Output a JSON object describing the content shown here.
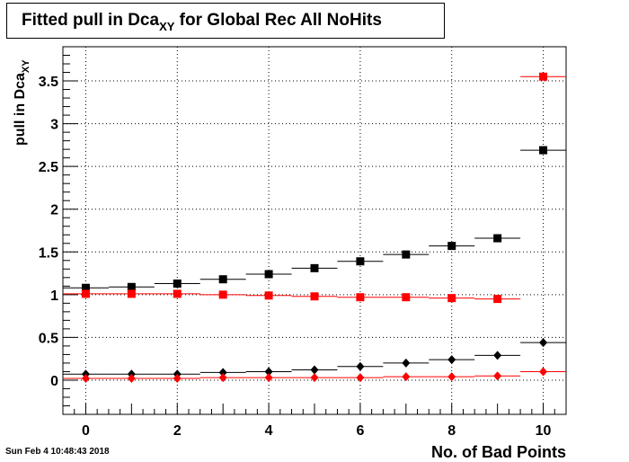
{
  "title": {
    "main": "Fitted pull in Dca",
    "sub": "XY",
    "rest": " for Global Rec All NoHits"
  },
  "ylabel": {
    "main": "pull in Dca",
    "sub": "XY"
  },
  "xlabel": "No. of Bad Points",
  "timestamp": "Sun Feb  4 10:48:43 2018",
  "chart_data": {
    "type": "scatter",
    "xlim": [
      -0.5,
      10.5
    ],
    "ylim": [
      -0.4,
      3.9
    ],
    "xticks": [
      0,
      2,
      4,
      6,
      8,
      10
    ],
    "yticks": [
      0,
      0.5,
      1,
      1.5,
      2,
      2.5,
      3,
      3.5
    ],
    "grid": true,
    "x": [
      0,
      1,
      2,
      3,
      4,
      5,
      6,
      7,
      8,
      9,
      10
    ],
    "series": [
      {
        "marker": "square",
        "color": "#000000",
        "values": [
          1.08,
          1.09,
          1.13,
          1.18,
          1.24,
          1.31,
          1.39,
          1.47,
          1.57,
          1.66,
          2.69
        ]
      },
      {
        "marker": "square",
        "color": "#ff0000",
        "values": [
          1.01,
          1.01,
          1.01,
          1.0,
          0.99,
          0.98,
          0.97,
          0.97,
          0.96,
          0.95,
          3.55
        ]
      },
      {
        "marker": "diamond",
        "color": "#000000",
        "values": [
          0.07,
          0.07,
          0.07,
          0.09,
          0.1,
          0.12,
          0.16,
          0.2,
          0.24,
          0.29,
          0.44
        ]
      },
      {
        "marker": "diamond",
        "color": "#ff0000",
        "values": [
          0.02,
          0.02,
          0.02,
          0.03,
          0.03,
          0.03,
          0.03,
          0.04,
          0.04,
          0.05,
          0.1
        ]
      }
    ]
  }
}
